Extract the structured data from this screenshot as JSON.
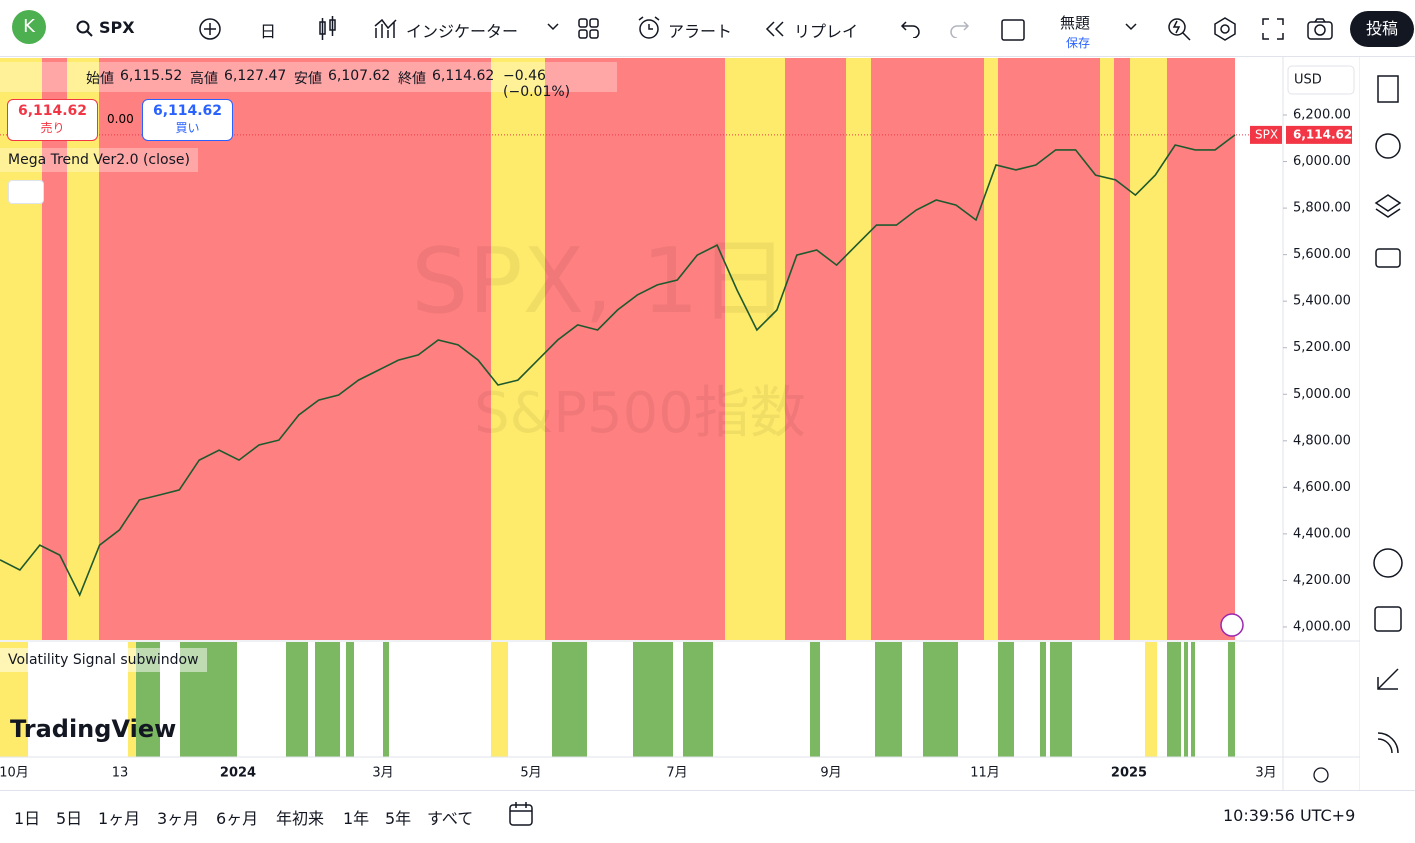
{
  "toolbar": {
    "avatar": "K",
    "symbol": "SPX",
    "interval": "日",
    "indicators": "インジケーター",
    "alert": "アラート",
    "replay": "リプレイ",
    "layout_name": "無題",
    "save": "保存",
    "publish": "投稿"
  },
  "legend": {
    "open_label": "始値",
    "open": "6,115.52",
    "high_label": "高値",
    "high": "6,127.47",
    "low_label": "安値",
    "low": "6,107.62",
    "close_label": "終値",
    "close": "6,114.62",
    "change": "−0.46 (−0.01%)",
    "sell_price": "6,114.62",
    "sell": "売り",
    "spread": "0.00",
    "buy_price": "6,114.62",
    "buy": "買い",
    "indicator": "Mega Trend Ver2.0 (close)",
    "subwindow": "Volatility Signal subwindow"
  },
  "watermark": {
    "symbol": "SPX, 1日",
    "description": "S&P500指数"
  },
  "logo": "TradingView",
  "currency": "USD",
  "last_price": {
    "symbol": "SPX",
    "value": 6114.62,
    "label": "6,114.62"
  },
  "chart_data": {
    "type": "line",
    "color": "#1e5a2e",
    "ylim": [
      3944,
      6445
    ],
    "yticks": [
      {
        "value": 4000,
        "label": "4,000.00"
      },
      {
        "value": 4200,
        "label": "4,200.00"
      },
      {
        "value": 4400,
        "label": "4,400.00"
      },
      {
        "value": 4600,
        "label": "4,600.00"
      },
      {
        "value": 4800,
        "label": "4,800.00"
      },
      {
        "value": 5000,
        "label": "5,000.00"
      },
      {
        "value": 5200,
        "label": "5,200.00"
      },
      {
        "value": 5400,
        "label": "5,400.00"
      },
      {
        "value": 5600,
        "label": "5,600.00"
      },
      {
        "value": 5800,
        "label": "5,800.00"
      },
      {
        "value": 6000,
        "label": "6,000.00"
      },
      {
        "value": 6200,
        "label": "6,200.00"
      }
    ],
    "time_labels": [
      "10月",
      "13",
      "2024",
      "3月",
      "5月",
      "7月",
      "9月",
      "11月",
      "2025",
      "3月"
    ],
    "values": [
      4288,
      4245,
      4352,
      4309,
      4137,
      4352,
      4417,
      4546,
      4567,
      4589,
      4717,
      4760,
      4717,
      4782,
      4803,
      4911,
      4975,
      4997,
      5061,
      5104,
      5147,
      5169,
      5233,
      5212,
      5147,
      5040,
      5061,
      5147,
      5233,
      5298,
      5276,
      5362,
      5427,
      5470,
      5491,
      5598,
      5641,
      5448,
      5276,
      5362,
      5598,
      5620,
      5555,
      5641,
      5727,
      5727,
      5792,
      5835,
      5813,
      5749,
      5985,
      5964,
      5985,
      6050,
      6050,
      5942,
      5921,
      5856,
      5942,
      6071,
      6050,
      6050,
      6114.62
    ]
  },
  "bottom_bar": {
    "ranges": [
      "1日",
      "5日",
      "1ヶ月",
      "3ヶ月",
      "6ヶ月",
      "年初来",
      "1年",
      "5年",
      "すべて"
    ],
    "clock": "10:39:56 UTC+9"
  }
}
